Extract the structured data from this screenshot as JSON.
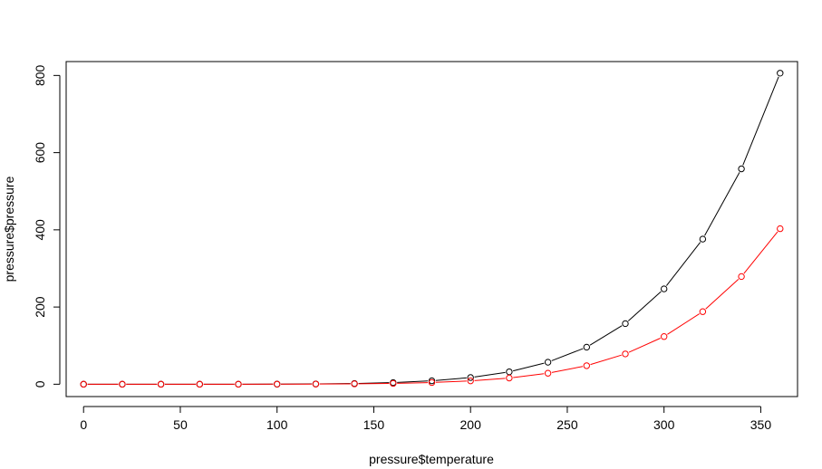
{
  "chart_data": {
    "type": "line",
    "xlabel": "pressure$temperature",
    "ylabel": "pressure$pressure",
    "xlim": [
      -9,
      369
    ],
    "ylim": [
      -32,
      836
    ],
    "x_ticks": [
      0,
      50,
      100,
      150,
      200,
      250,
      300,
      350
    ],
    "y_ticks": [
      0,
      200,
      400,
      600,
      800
    ],
    "grid": false,
    "legend": "none",
    "series": [
      {
        "color": "#000000",
        "markers": "open-circle",
        "x": [
          0,
          20,
          40,
          60,
          80,
          100,
          120,
          140,
          160,
          180,
          200,
          220,
          240,
          260,
          280,
          300,
          320,
          340,
          360
        ],
        "y": [
          0.0002,
          0.0012,
          0.006,
          0.03,
          0.09,
          0.27,
          0.75,
          1.85,
          4.2,
          8.8,
          17.3,
          32.1,
          57,
          96,
          157,
          247,
          376,
          558,
          806
        ]
      },
      {
        "color": "#ff0000",
        "markers": "open-circle",
        "x": [
          0,
          20,
          40,
          60,
          80,
          100,
          120,
          140,
          160,
          180,
          200,
          220,
          240,
          260,
          280,
          300,
          320,
          340,
          360
        ],
        "y": [
          0.0001,
          0.0006,
          0.003,
          0.015,
          0.045,
          0.14,
          0.38,
          0.93,
          2.1,
          4.4,
          8.7,
          16.1,
          28.5,
          48,
          78.5,
          123.5,
          188,
          279,
          403
        ]
      }
    ]
  }
}
